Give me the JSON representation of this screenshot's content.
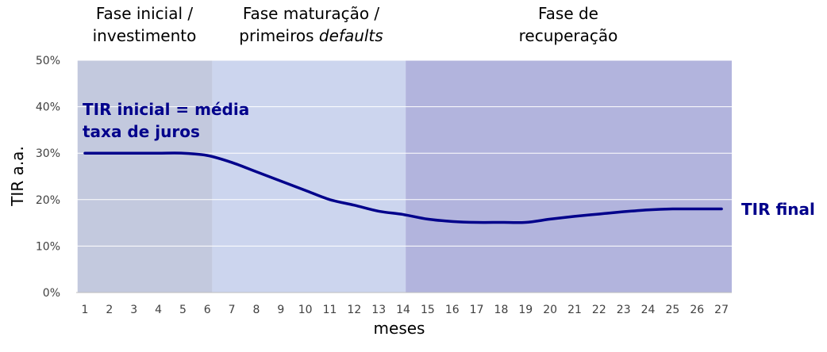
{
  "chart_data": {
    "type": "line",
    "title": "",
    "xlabel": "meses",
    "ylabel": "TIR a.a.",
    "x": [
      1,
      2,
      3,
      4,
      5,
      6,
      7,
      8,
      9,
      10,
      11,
      12,
      13,
      14,
      15,
      16,
      17,
      18,
      19,
      20,
      21,
      22,
      23,
      24,
      25,
      26,
      27
    ],
    "series": [
      {
        "values": [
          30,
          30,
          30,
          30,
          30,
          29.5,
          28,
          26,
          24,
          22,
          20,
          18.8,
          17.5,
          16.8,
          15.8,
          15.3,
          15.1,
          15.1,
          15.1,
          15.8,
          16.4,
          16.9,
          17.4,
          17.8,
          18,
          18,
          18
        ]
      }
    ],
    "ylim": [
      0,
      50
    ],
    "yticks": [
      0,
      10,
      20,
      30,
      40,
      50
    ],
    "ytick_labels": [
      "0%",
      "10%",
      "20%",
      "30%",
      "40%",
      "50%"
    ],
    "grid": true,
    "line_color": "#00008B",
    "phases": [
      {
        "label_lines": [
          "Fase inicial /",
          "investimento"
        ],
        "x_range": [
          0.7,
          6.2
        ],
        "color": "#C3C9DE"
      },
      {
        "label_lines": [
          "Fase maturação /",
          "primeiros defaults"
        ],
        "italic_word": "defaults",
        "x_range": [
          6.2,
          14.1
        ],
        "color": "#CCD5EE"
      },
      {
        "label_lines": [
          "Fase de",
          "recuperação"
        ],
        "x_range": [
          14.1,
          27.5
        ],
        "color": "#B2B4DD"
      }
    ],
    "annotations": [
      {
        "label_lines": [
          "TIR inicial = média",
          "taxa de juros"
        ],
        "color": "#00008B"
      },
      {
        "label_lines": [
          "TIR final"
        ],
        "color": "#00008B"
      }
    ]
  }
}
